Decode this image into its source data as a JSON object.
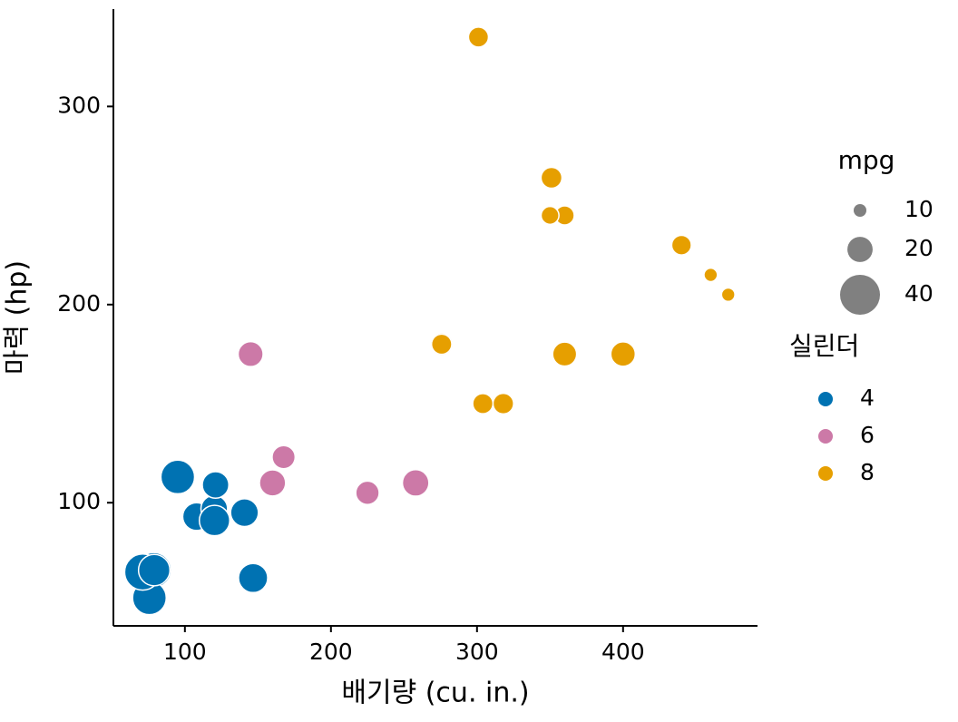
{
  "chart_data": {
    "type": "scatter",
    "x_label": "배기량 (cu. in.)",
    "y_label": "마력 (hp)",
    "xlim": [
      51.05,
      492.05
    ],
    "ylim": [
      37.85,
      349.15
    ],
    "xticks": [
      100,
      200,
      300,
      400
    ],
    "yticks": [
      100,
      200,
      300
    ],
    "grid": false,
    "size_legend": {
      "title": "mpg",
      "breaks": [
        10,
        20,
        40
      ],
      "color": "#808080"
    },
    "color_legend_title": "실린더",
    "series": [
      {
        "name": "4",
        "color": "#0072B2",
        "x": [
          108,
          146.7,
          140.8,
          78.7,
          75.7,
          71.1,
          120.1,
          79,
          120.3,
          95.1,
          121
        ],
        "values": [
          93,
          62,
          95,
          66,
          52,
          65,
          97,
          66,
          91,
          113,
          109
        ],
        "sizes": [
          22.8,
          24.4,
          22.8,
          32.4,
          30.4,
          33.9,
          21.5,
          27.3,
          26,
          30.4,
          21.4
        ]
      },
      {
        "name": "6",
        "color": "#CC79A7",
        "x": [
          160,
          160,
          258,
          225,
          167.6,
          167.6,
          145
        ],
        "values": [
          110,
          110,
          110,
          105,
          123,
          123,
          175
        ],
        "sizes": [
          21,
          21,
          21.4,
          18.1,
          19.2,
          17.8,
          19.7
        ]
      },
      {
        "name": "8",
        "color": "#E69F00",
        "x": [
          360,
          360,
          275.8,
          275.8,
          275.8,
          472,
          460,
          440,
          318,
          304,
          350,
          400,
          351,
          301
        ],
        "values": [
          175,
          245,
          180,
          180,
          180,
          205,
          215,
          230,
          150,
          150,
          245,
          175,
          264,
          335
        ],
        "sizes": [
          18.7,
          14.3,
          16.4,
          17.3,
          15.2,
          10.4,
          10.4,
          14.7,
          15.5,
          15.2,
          13.3,
          19.2,
          15.8,
          15
        ]
      }
    ]
  }
}
